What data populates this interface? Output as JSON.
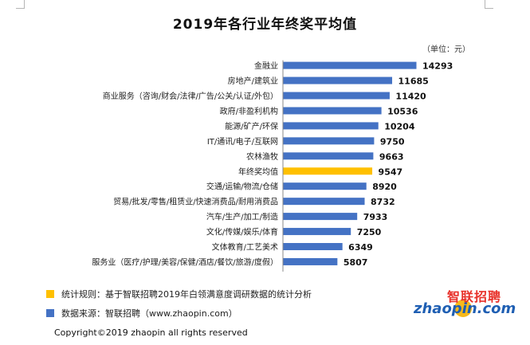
{
  "page": {
    "title": "2019年各行业年终奖平均值",
    "unit": "（单位：元）"
  },
  "chart_data": {
    "type": "bar",
    "orientation": "horizontal",
    "title": "2019年各行业年终奖平均值",
    "unit": "（单位：元）",
    "categories": [
      "金融业",
      "房地产/建筑业",
      "商业服务（咨询/财会/法律/广告/公关/认证/外包）",
      "政府/非盈利机构",
      "能源/矿产/环保",
      "IT/通讯/电子/互联网",
      "农林渔牧",
      "年终奖均值",
      "交通/运输/物流/仓储",
      "贸易/批发/零售/租赁业/快速消费品/耐用消费品",
      "汽车/生产/加工/制造",
      "文化/传媒/娱乐/体育",
      "文体教育/工艺美术",
      "服务业（医疗/护理/美容/保健/酒店/餐饮/旅游/度假）"
    ],
    "values": [
      14293,
      11685,
      11420,
      10536,
      10204,
      9750,
      9663,
      9547,
      8920,
      8732,
      7933,
      7250,
      6349,
      5807
    ],
    "highlight_index": 7,
    "colors": {
      "bar": "#4472c4",
      "highlight": "#ffc000",
      "axis": "#888888"
    },
    "xlim": [
      0,
      14293
    ],
    "grid": false,
    "legend": "bottom-left"
  },
  "legend": {
    "rule_text": "统计规则：基于智联招聘2019年白领满意度调研数据的统计分析",
    "rule_color": "#ffc000",
    "source_text": "数据来源：智联招聘（www.zhaopin.com）",
    "source_color": "#4472c4"
  },
  "footer": {
    "copyright": "Copyright©2019 zhaopin all rights reserved"
  },
  "logo": {
    "name_cn": "智联招聘",
    "name_en": "zhaopin.com",
    "icon": "zhaopin-logo"
  }
}
